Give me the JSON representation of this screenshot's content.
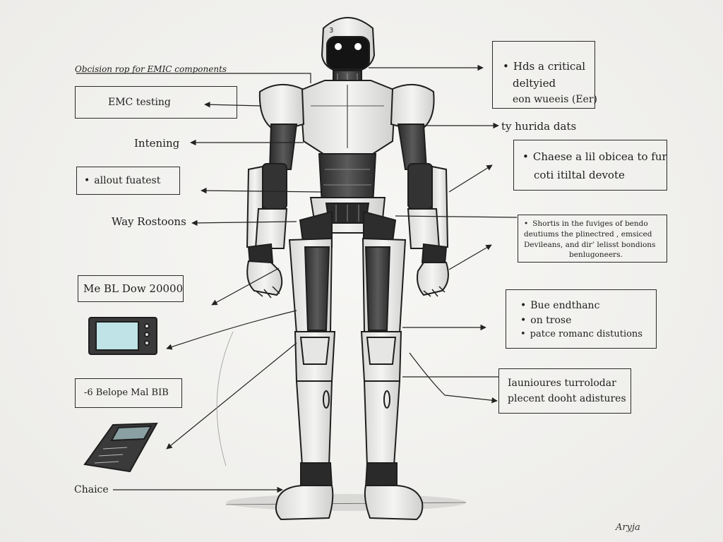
{
  "left_labels": {
    "header": "Obcision rop for EMIC components",
    "emc_testing": "EMC testing",
    "intening": "Intening",
    "allout": "allout fuatest",
    "way_rostoons": "Way Rostoons",
    "device_model": "Me BL Dow 20000",
    "belope": "-6 Belope Mal BIB",
    "choice": "Chaice"
  },
  "right_labels": {
    "critical": [
      "Hds a critical",
      "deltyied",
      "eon wueeis (Eer)"
    ],
    "hurida": "ty hurida dats",
    "chaese": [
      "Chaese a lil obicea to fur",
      "coti itiltal devote"
    ],
    "shortis": [
      "Shortis in the fuviges of bendo",
      "deutiums the plinectred , emsiced",
      "Devileans, and dir’ lelisst bondions",
      "benlugoneers."
    ],
    "bue": [
      "Bue endthanc",
      "on trose",
      "patce romanc distutions"
    ],
    "iaunioures": [
      "Iaunioures turrolodar",
      "plecent dooht adistures"
    ]
  },
  "signature": "Aryja",
  "colors": {
    "ink": "#1e1e1e",
    "paper": "#f2f2f0",
    "screen": "#bfe3e6"
  }
}
